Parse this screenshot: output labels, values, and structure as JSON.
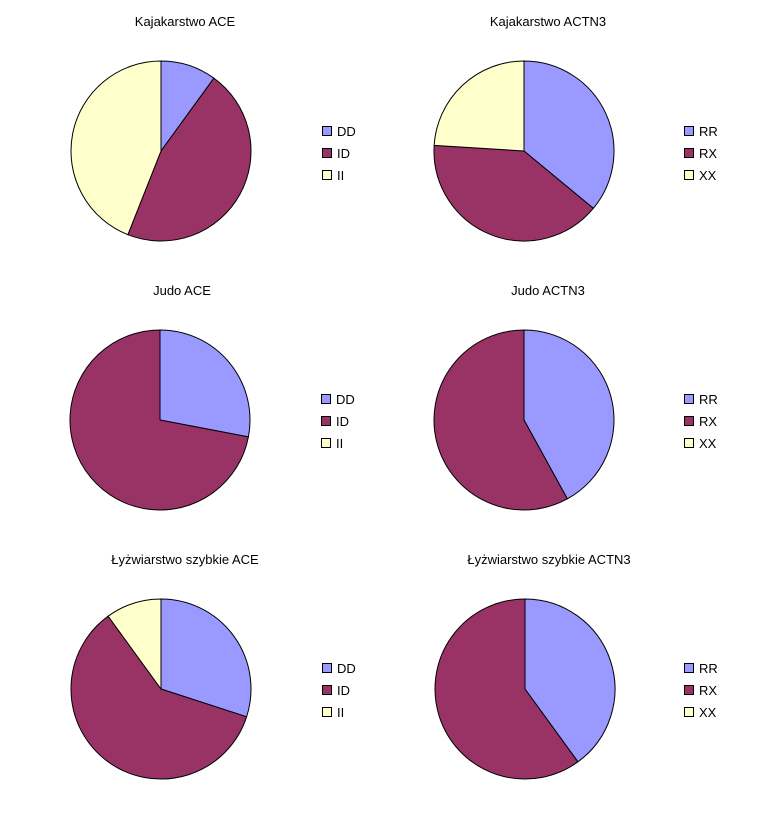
{
  "colors": {
    "s1": "#9999ff",
    "s2": "#993366",
    "s3": "#ffffcc",
    "outline": "#000000"
  },
  "chart_data": [
    {
      "type": "pie",
      "title": "Kajakarstwo ACE",
      "categories": [
        "DD",
        "ID",
        "II"
      ],
      "values": [
        10,
        46,
        44
      ]
    },
    {
      "type": "pie",
      "title": "Kajakarstwo ACTN3",
      "categories": [
        "RR",
        "RX",
        "XX"
      ],
      "values": [
        36,
        40,
        24
      ]
    },
    {
      "type": "pie",
      "title": "Judo ACE",
      "categories": [
        "DD",
        "ID",
        "II"
      ],
      "values": [
        28,
        72,
        0
      ]
    },
    {
      "type": "pie",
      "title": "Judo ACTN3",
      "categories": [
        "RR",
        "RX",
        "XX"
      ],
      "values": [
        42,
        58,
        0
      ]
    },
    {
      "type": "pie",
      "title": "Łyżwiarstwo szybkie ACE",
      "categories": [
        "DD",
        "ID",
        "II"
      ],
      "values": [
        30,
        60,
        10
      ]
    },
    {
      "type": "pie",
      "title": "Łyżwiarstwo szybkie ACTN3",
      "categories": [
        "RR",
        "RX",
        "XX"
      ],
      "values": [
        40,
        60,
        0
      ]
    }
  ]
}
